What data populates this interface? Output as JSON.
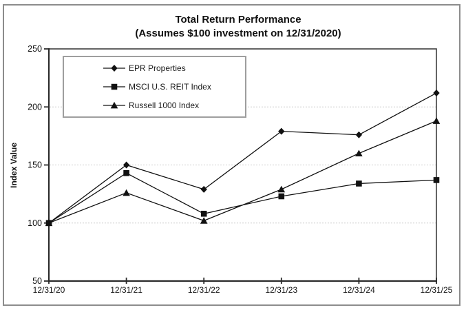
{
  "chart": {
    "title": "Total Return Performance",
    "subtitle": "(Assumes $100 investment on 12/31/2020)",
    "ylabel": "Index Value"
  },
  "chart_data": {
    "type": "line",
    "title": "Total Return Performance (Assumes $100 investment on 12/31/2020)",
    "xlabel": "",
    "ylabel": "Index Value",
    "categories": [
      "12/31/20",
      "12/31/21",
      "12/31/22",
      "12/31/23",
      "12/31/24",
      "12/31/25"
    ],
    "series": [
      {
        "name": "EPR Properties",
        "marker": "diamond",
        "values": [
          100,
          150,
          129,
          179,
          176,
          212
        ]
      },
      {
        "name": "MSCI U.S. REIT Index",
        "marker": "square",
        "values": [
          100,
          143,
          108,
          123,
          134,
          137
        ]
      },
      {
        "name": "Russell 1000 Index",
        "marker": "triangle",
        "values": [
          100,
          126,
          102,
          129,
          160,
          188
        ]
      }
    ],
    "ylim": [
      50,
      250
    ],
    "yticks": [
      50,
      100,
      150,
      200,
      250
    ],
    "grid": "horizontal-dashed",
    "legend_position": "top-left-inside",
    "colors": {
      "series_line": "#111111",
      "marker_fill": "#111111",
      "gridline": "#cbcbcb",
      "axis_frame": "#3d3d3d",
      "outer_border": "#8c8c8c",
      "text": "#111111",
      "background": "#ffffff"
    }
  }
}
